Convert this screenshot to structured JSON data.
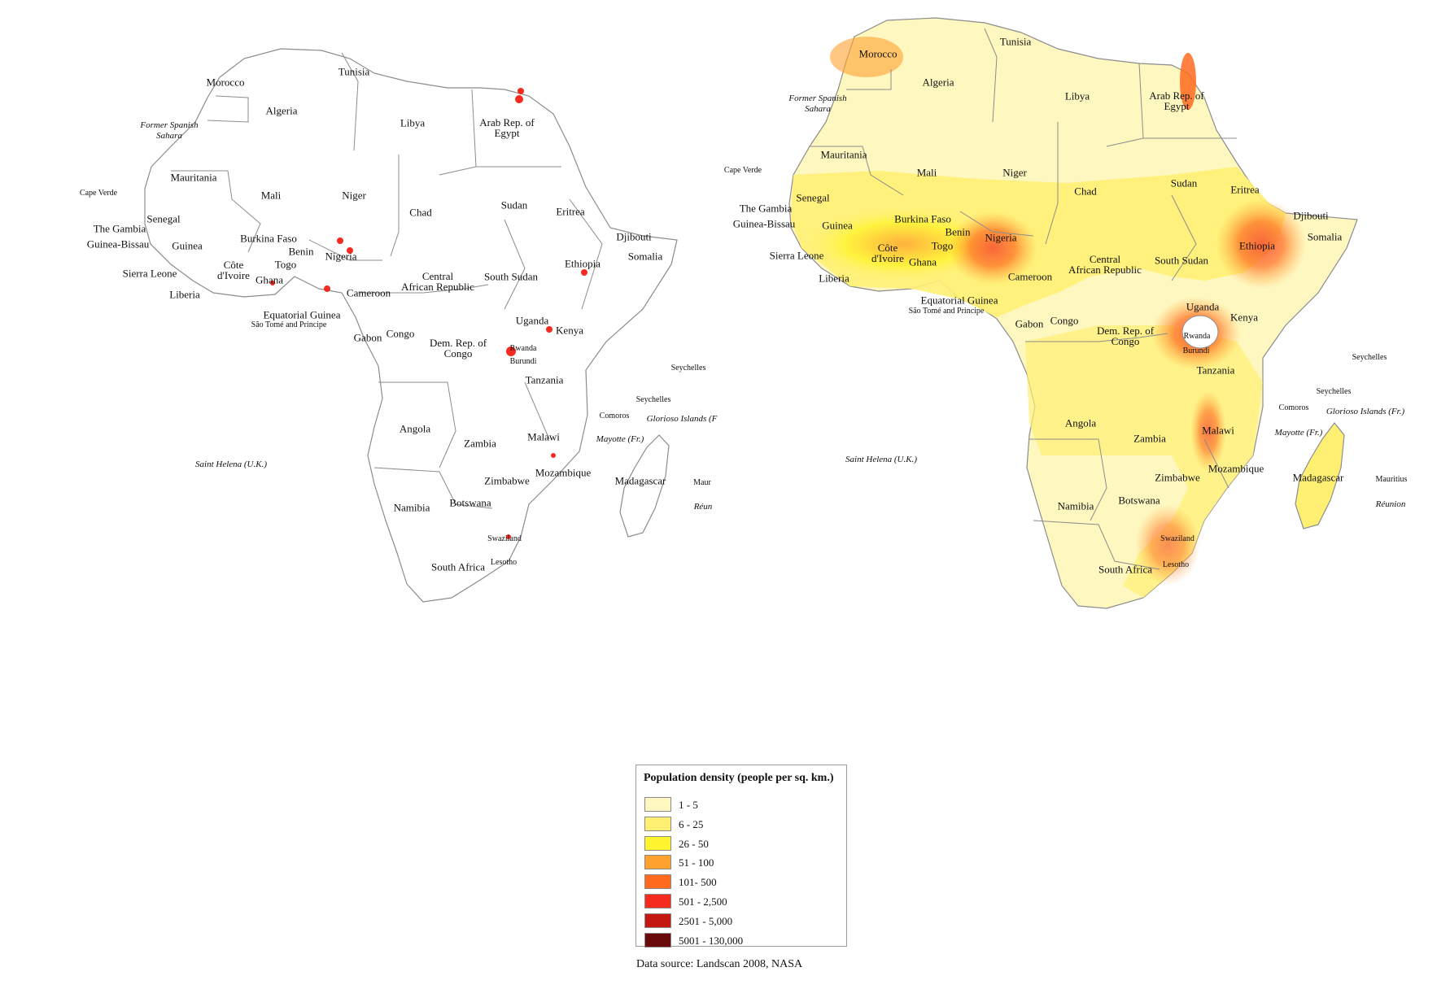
{
  "colors": {
    "class1": "#fff7c0",
    "class2": "#ffef73",
    "class3": "#fff42f",
    "class4": "#ffa12f",
    "class5": "#ff6a1f",
    "class6": "#f52b1f",
    "class7": "#c51812",
    "class8": "#6b0a0a",
    "border": "#8c8c8c"
  },
  "left_map": {
    "labels": {
      "morocco": "Morocco",
      "tunisia": "Tunisia",
      "algeria": "Algeria",
      "libya": "Libya",
      "egypt": "Arab Rep. of\nEgypt",
      "spanish_sahara": "Former Spanish\nSahara",
      "mauritania": "Mauritania",
      "cape_verde": "Cape Verde",
      "mali": "Mali",
      "niger": "Niger",
      "chad": "Chad",
      "sudan": "Sudan",
      "eritrea": "Eritrea",
      "djibouti": "Djibouti",
      "senegal": "Senegal",
      "gambia": "The Gambia",
      "guinea_bissau": "Guinea-Bissau",
      "guinea": "Guinea",
      "burkina": "Burkina Faso",
      "benin": "Benin",
      "togo": "Togo",
      "nigeria": "Nigeria",
      "ethiopia": "Ethiopia",
      "somalia": "Somalia",
      "sierra_leone": "Sierra Leone",
      "cote": "Côte\nd'Ivoire",
      "ghana": "Ghana",
      "liberia": "Liberia",
      "cameroon": "Cameroon",
      "car": "Central\nAfrican Republic",
      "south_sudan": "South Sudan",
      "eq_guinea": "Equatorial Guinea",
      "sao_tome": "São Tomé and Principe",
      "gabon": "Gabon",
      "congo": "Congo",
      "drc": "Dem. Rep. of\nCongo",
      "uganda": "Uganda",
      "kenya": "Kenya",
      "rwanda": "Rwanda",
      "burundi": "Burundi",
      "tanzania": "Tanzania",
      "seychelles_a": "Seychelles",
      "seychelles_b": "Seychelles",
      "comoros": "Comoros",
      "glorioso": "Glorioso Islands (F",
      "mayotte": "Mayotte (Fr.)",
      "angola": "Angola",
      "zambia": "Zambia",
      "malawi": "Malawi",
      "mozambique": "Mozambique",
      "madagascar": "Madagascar",
      "mauritius": "Maur",
      "reunion": "Réun",
      "saint_helena": "Saint Helena (U.K.)",
      "zimbabwe": "Zimbabwe",
      "namibia": "Namibia",
      "botswana": "Botswana",
      "swaziland": "Swaziland",
      "south_africa": "South Africa",
      "lesotho": "Lesotho"
    }
  },
  "right_map": {
    "labels": {
      "morocco": "Morocco",
      "tunisia": "Tunisia",
      "algeria": "Algeria",
      "libya": "Libya",
      "egypt": "Arab Rep. of\nEgypt",
      "spanish_sahara": "Former Spanish\nSahara",
      "mauritania": "Mauritania",
      "cape_verde": "Cape Verde",
      "mali": "Mali",
      "niger": "Niger",
      "chad": "Chad",
      "sudan": "Sudan",
      "eritrea": "Eritrea",
      "djibouti": "Djibouti",
      "senegal": "Senegal",
      "gambia": "The Gambia",
      "guinea_bissau": "Guinea-Bissau",
      "guinea": "Guinea",
      "burkina": "Burkina Faso",
      "benin": "Benin",
      "togo": "Togo",
      "nigeria": "Nigeria",
      "ethiopia": "Ethiopia",
      "somalia": "Somalia",
      "sierra_leone": "Sierra Leone",
      "cote": "Côte\nd'Ivoire",
      "ghana": "Ghana",
      "liberia": "Liberia",
      "cameroon": "Cameroon",
      "car": "Central\nAfrican Republic",
      "south_sudan": "South Sudan",
      "eq_guinea": "Equatorial Guinea",
      "sao_tome": "São Tomé and Principe",
      "gabon": "Gabon",
      "congo": "Congo",
      "drc": "Dem. Rep. of\nCongo",
      "uganda": "Uganda",
      "kenya": "Kenya",
      "rwanda": "Rwanda",
      "burundi": "Burundi",
      "tanzania": "Tanzania",
      "seychelles_a": "Seychelles",
      "seychelles_b": "Seychelles",
      "comoros": "Comoros",
      "glorioso": "Glorioso Islands (Fr.)",
      "mayotte": "Mayotte (Fr.)",
      "angola": "Angola",
      "zambia": "Zambia",
      "malawi": "Malawi",
      "mozambique": "Mozambique",
      "madagascar": "Madagascar",
      "mauritius": "Mauritius",
      "reunion": "Réunion",
      "saint_helena": "Saint Helena (U.K.)",
      "zimbabwe": "Zimbabwe",
      "namibia": "Namibia",
      "botswana": "Botswana",
      "swaziland": "Swaziland",
      "south_africa": "South Africa",
      "lesotho": "Lesotho"
    }
  },
  "legend": {
    "title": "Population density (people per sq. km.)",
    "items": [
      {
        "label": "1 - 5",
        "color": "#fff7c0"
      },
      {
        "label": "6 - 25",
        "color": "#ffef73"
      },
      {
        "label": "26 - 50",
        "color": "#fff42f"
      },
      {
        "label": "51 - 100",
        "color": "#ffa12f"
      },
      {
        "label": "101- 500",
        "color": "#ff6a1f"
      },
      {
        "label": "501 - 2,500",
        "color": "#f52b1f"
      },
      {
        "label": "2501 - 5,000",
        "color": "#c51812"
      },
      {
        "label": "5001 - 130,000",
        "color": "#6b0a0a"
      }
    ]
  },
  "source": "Data source: Landscan 2008, NASA"
}
